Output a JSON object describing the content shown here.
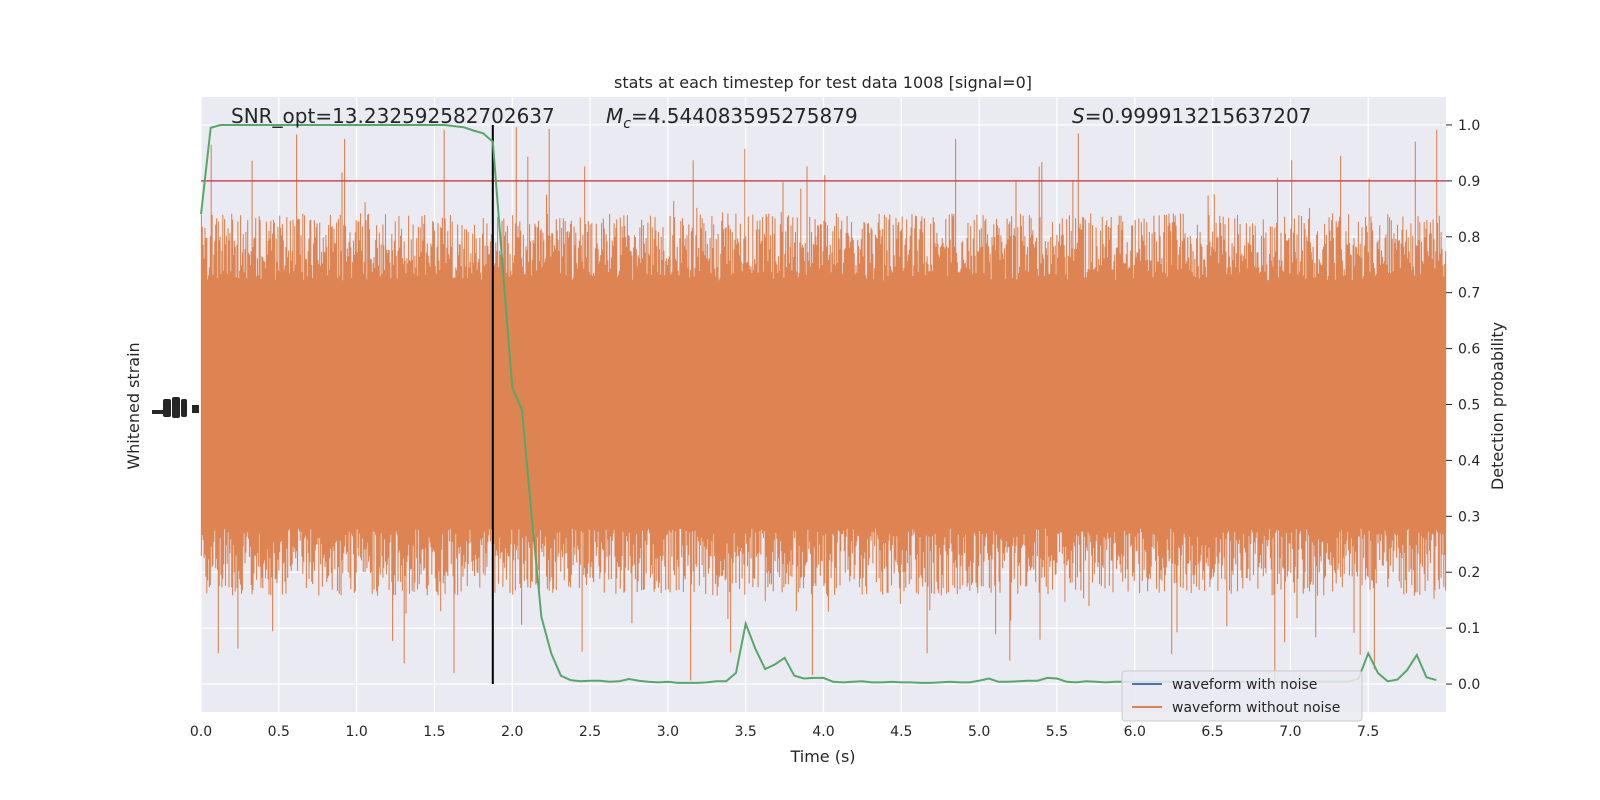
{
  "chart_data": {
    "type": "line",
    "title": "stats at each timestep for test data 1008 [signal=0]",
    "xlabel": "Time (s)",
    "ylabel_left": "Whitened strain",
    "ylabel_right": "Detection probability",
    "xlim": [
      0,
      8
    ],
    "ylim_right": [
      -0.05,
      1.05
    ],
    "x_ticks": [
      "0.0",
      "0.5",
      "1.0",
      "1.5",
      "2.0",
      "2.5",
      "3.0",
      "3.5",
      "4.0",
      "4.5",
      "5.0",
      "5.5",
      "6.0",
      "6.5",
      "7.0",
      "7.5"
    ],
    "y_ticks_right": [
      "0.0",
      "0.1",
      "0.2",
      "0.3",
      "0.4",
      "0.5",
      "0.6",
      "0.7",
      "0.8",
      "0.9",
      "1.0"
    ],
    "annotations": {
      "snr": "SNR_opt=13.232592582702637",
      "mc_symbol": "M",
      "mc_subscript": "c",
      "mc_value": "=4.544083595275879",
      "s_symbol": "S",
      "s_value": "=0.999913215637207"
    },
    "threshold": 0.9,
    "vertical_marker_x": 1.875,
    "legend": {
      "position": "lower-right",
      "entries": [
        "waveform with noise",
        "waveform without noise"
      ]
    },
    "colors": {
      "noise": "#4c72b0",
      "waveform": "#dd8452",
      "probability": "#55a868",
      "threshold": "#c44e52",
      "marker": "#000000",
      "background": "#eaeaf2",
      "grid": "#ffffff"
    },
    "series": [
      {
        "name": "detection probability",
        "x": [
          0.0,
          0.0625,
          0.125,
          0.1875,
          0.25,
          0.3125,
          0.375,
          0.4375,
          0.5,
          0.5625,
          0.625,
          0.6875,
          0.75,
          0.8125,
          0.875,
          0.9375,
          1.0,
          1.0625,
          1.125,
          1.1875,
          1.25,
          1.3125,
          1.375,
          1.4375,
          1.5,
          1.5625,
          1.625,
          1.6875,
          1.75,
          1.8125,
          1.875,
          1.9375,
          2.0,
          2.0625,
          2.125,
          2.1875,
          2.25,
          2.3125,
          2.375,
          2.4375,
          2.5,
          2.5625,
          2.625,
          2.6875,
          2.75,
          2.8125,
          2.875,
          2.9375,
          3.0,
          3.0625,
          3.125,
          3.1875,
          3.25,
          3.3125,
          3.375,
          3.4375,
          3.5,
          3.5625,
          3.625,
          3.6875,
          3.75,
          3.8125,
          3.875,
          3.9375,
          4.0,
          4.0625,
          4.125,
          4.1875,
          4.25,
          4.3125,
          4.375,
          4.4375,
          4.5,
          4.5625,
          4.625,
          4.6875,
          4.75,
          4.8125,
          4.875,
          4.9375,
          5.0,
          5.0625,
          5.125,
          5.1875,
          5.25,
          5.3125,
          5.375,
          5.4375,
          5.5,
          5.5625,
          5.625,
          5.6875,
          5.75,
          5.8125,
          5.875,
          5.9375,
          6.0,
          6.0625,
          6.125,
          6.1875,
          6.25,
          6.3125,
          6.375,
          6.4375,
          6.5,
          6.5625,
          6.625,
          6.6875,
          6.75,
          6.8125,
          6.875,
          6.9375,
          7.0,
          7.0625,
          7.125,
          7.1875,
          7.25,
          7.3125,
          7.375,
          7.4375,
          7.5,
          7.5625,
          7.625,
          7.6875,
          7.75,
          7.8125,
          7.875,
          7.9375
        ],
        "y": [
          0.84,
          0.995,
          1.0,
          1.0,
          1.0,
          1.0,
          1.0,
          1.0,
          1.0,
          1.0,
          1.0,
          1.0,
          1.0,
          1.0,
          1.0,
          1.0,
          1.0,
          1.0,
          1.0,
          1.0,
          1.0,
          1.0,
          1.0,
          1.0,
          1.0,
          1.0,
          0.998,
          0.996,
          0.99,
          0.985,
          0.97,
          0.75,
          0.53,
          0.49,
          0.3,
          0.12,
          0.055,
          0.015,
          0.007,
          0.005,
          0.006,
          0.006,
          0.004,
          0.005,
          0.009,
          0.006,
          0.004,
          0.003,
          0.004,
          0.002,
          0.002,
          0.002,
          0.003,
          0.005,
          0.005,
          0.02,
          0.108,
          0.063,
          0.027,
          0.035,
          0.047,
          0.015,
          0.01,
          0.011,
          0.011,
          0.004,
          0.003,
          0.004,
          0.005,
          0.003,
          0.003,
          0.004,
          0.003,
          0.003,
          0.002,
          0.002,
          0.003,
          0.004,
          0.003,
          0.003,
          0.006,
          0.01,
          0.004,
          0.004,
          0.005,
          0.006,
          0.006,
          0.011,
          0.01,
          0.004,
          0.003,
          0.005,
          0.004,
          0.003,
          0.004,
          0.004,
          0.004,
          0.004,
          0.004,
          0.004,
          0.004,
          0.004,
          0.004,
          0.004,
          0.004,
          0.004,
          0.004,
          0.004,
          0.004,
          0.004,
          0.004,
          0.004,
          0.004,
          0.004,
          0.004,
          0.004,
          0.004,
          0.004,
          0.004,
          0.01,
          0.055,
          0.02,
          0.005,
          0.008,
          0.025,
          0.052,
          0.012,
          0.007
        ]
      },
      {
        "name": "waveform without noise",
        "description_level": "whitened strain trace on left axis",
        "band_center": 0.5,
        "band_half_width_core": 0.1,
        "envelope_typical": [
          0.23,
          0.77
        ],
        "spike_range": [
          0.0,
          1.0
        ]
      }
    ]
  }
}
